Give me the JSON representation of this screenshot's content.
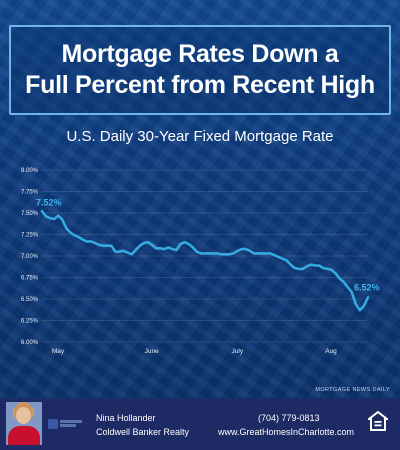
{
  "header": {
    "title_line1": "Mortgage Rates Down a",
    "title_line2": "Full Percent from Recent High"
  },
  "chart_data": {
    "type": "line",
    "title": "U.S. Daily 30-Year Fixed Mortgage Rate",
    "xlabel": "",
    "ylabel": "",
    "ylim": [
      6.0,
      8.0
    ],
    "yticks": [
      "8.00%",
      "7.75%",
      "7.50%",
      "7.25%",
      "7.00%",
      "6.75%",
      "6.50%",
      "6.25%",
      "6.00%"
    ],
    "ytick_values": [
      8.0,
      7.75,
      7.5,
      7.25,
      7.0,
      6.75,
      6.5,
      6.25,
      6.0
    ],
    "x_month_labels": [
      "May",
      "June",
      "July",
      "Aug"
    ],
    "x_month_positions": [
      0,
      23,
      44,
      67
    ],
    "grid": true,
    "line_color": "#36a9e1",
    "series": [
      {
        "values": [
          7.52,
          7.46,
          7.44,
          7.43,
          7.47,
          7.42,
          7.32,
          7.27,
          7.24,
          7.22,
          7.19,
          7.17,
          7.17,
          7.15,
          7.13,
          7.12,
          7.12,
          7.12,
          7.05,
          7.05,
          7.06,
          7.04,
          7.02,
          7.07,
          7.12,
          7.15,
          7.16,
          7.13,
          7.09,
          7.09,
          7.08,
          7.1,
          7.08,
          7.07,
          7.14,
          7.16,
          7.14,
          7.1,
          7.05,
          7.03,
          7.03,
          7.03,
          7.03,
          7.03,
          7.02,
          7.02,
          7.02,
          7.03,
          7.06,
          7.08,
          7.08,
          7.06,
          7.03,
          7.03,
          7.03,
          7.03,
          7.03,
          7.01,
          6.99,
          6.97,
          6.95,
          6.9,
          6.86,
          6.85,
          6.85,
          6.88,
          6.9,
          6.89,
          6.89,
          6.86,
          6.85,
          6.84,
          6.8,
          6.74,
          6.7,
          6.64,
          6.58,
          6.44,
          6.37,
          6.42,
          6.52
        ]
      }
    ],
    "annotations": [
      {
        "text": "7.52%",
        "index": 0,
        "value": 7.52
      },
      {
        "text": "6.52%",
        "index": 80,
        "value": 6.52
      }
    ]
  },
  "source_label": "MORTGAGE NEWS DAILY",
  "footer": {
    "agent_name": "Nina Hollander",
    "company": "Coldwell Banker Realty",
    "phone": "(704) 779-0813",
    "website": "www.GreatHomesInCharlotte.com"
  },
  "icons": {
    "agent_photo": "agent-photo",
    "brokerage_logo": "brokerage-logo-icon",
    "equal_housing": "equal-housing-opportunity-icon"
  }
}
